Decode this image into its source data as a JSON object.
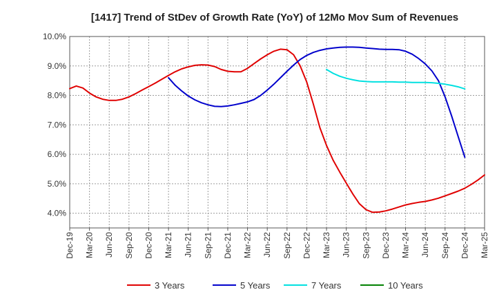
{
  "chart_data": {
    "type": "line",
    "title": "[1417]  Trend of StDev of Growth Rate (YoY) of 12Mo Mov Sum of Revenues",
    "xlabel": "",
    "ylabel": "",
    "ylim": [
      3.5,
      10.0
    ],
    "y_ticks": [
      4.0,
      5.0,
      6.0,
      7.0,
      8.0,
      9.0,
      10.0
    ],
    "y_tick_labels": [
      "4.0%",
      "5.0%",
      "6.0%",
      "7.0%",
      "8.0%",
      "9.0%",
      "10.0%"
    ],
    "x_ticks": [
      "Dec-19",
      "Mar-20",
      "Jun-20",
      "Sep-20",
      "Dec-20",
      "Mar-21",
      "Jun-21",
      "Sep-21",
      "Dec-21",
      "Mar-22",
      "Jun-22",
      "Sep-22",
      "Dec-22",
      "Mar-23",
      "Jun-23",
      "Sep-23",
      "Dec-23",
      "Mar-24",
      "Jun-24",
      "Sep-24",
      "Dec-24",
      "Mar-25"
    ],
    "x_range_months": [
      0,
      63
    ],
    "grid": true,
    "legend_position": "bottom",
    "series": [
      {
        "name": "3 Years",
        "color": "#e00000",
        "start_month": 0,
        "values": [
          8.23,
          8.32,
          8.25,
          8.08,
          7.95,
          7.87,
          7.83,
          7.83,
          7.87,
          7.95,
          8.06,
          8.18,
          8.3,
          8.42,
          8.55,
          8.68,
          8.8,
          8.9,
          8.97,
          9.02,
          9.04,
          9.03,
          8.98,
          8.88,
          8.82,
          8.8,
          8.8,
          8.92,
          9.08,
          9.24,
          9.38,
          9.5,
          9.57,
          9.55,
          9.38,
          9.0,
          8.45,
          7.7,
          6.9,
          6.3,
          5.8,
          5.4,
          5.02,
          4.65,
          4.32,
          4.12,
          4.03,
          4.04,
          4.08,
          4.14,
          4.21,
          4.28,
          4.33,
          4.37,
          4.4,
          4.45,
          4.51,
          4.59,
          4.67,
          4.75,
          4.85,
          4.98,
          5.13,
          5.3
        ]
      },
      {
        "name": "5 Years",
        "color": "#0000cc",
        "start_month": 15,
        "values": [
          8.6,
          8.35,
          8.15,
          7.98,
          7.85,
          7.75,
          7.68,
          7.63,
          7.62,
          7.64,
          7.68,
          7.73,
          7.78,
          7.86,
          8.0,
          8.18,
          8.38,
          8.6,
          8.82,
          9.03,
          9.22,
          9.36,
          9.46,
          9.53,
          9.58,
          9.61,
          9.63,
          9.64,
          9.64,
          9.63,
          9.61,
          9.59,
          9.57,
          9.56,
          9.56,
          9.55,
          9.5,
          9.4,
          9.25,
          9.07,
          8.83,
          8.5,
          7.95,
          7.3,
          6.6,
          5.9
        ]
      },
      {
        "name": "7 Years",
        "color": "#00e0e0",
        "start_month": 39,
        "values": [
          8.88,
          8.75,
          8.65,
          8.58,
          8.53,
          8.49,
          8.47,
          8.46,
          8.46,
          8.46,
          8.46,
          8.45,
          8.45,
          8.44,
          8.44,
          8.44,
          8.43,
          8.41,
          8.38,
          8.34,
          8.29,
          8.22
        ]
      },
      {
        "name": "10 Years",
        "color": "#008000",
        "start_month": 0,
        "values": []
      }
    ]
  }
}
